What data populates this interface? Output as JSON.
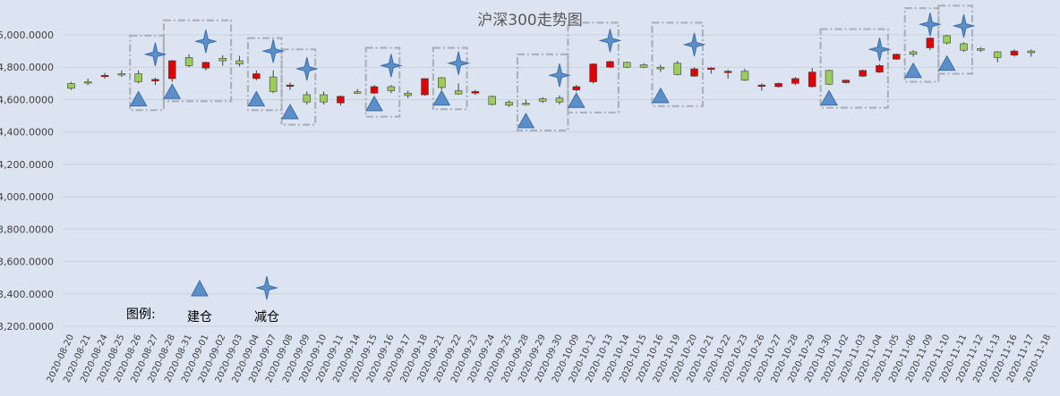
{
  "chart_data": {
    "type": "candlestick",
    "title": "沪深300走势图",
    "xlabel": "",
    "ylabel": "",
    "ylim": [
      3200,
      5000
    ],
    "y_ticks": [
      "3,200.0000",
      "3,400.0000",
      "3,600.0000",
      "3,800.0000",
      "4,000.0000",
      "4,200.0000",
      "4,400.0000",
      "4,600.0000",
      "4,800.0000",
      "5,000.0000"
    ],
    "grid": true,
    "up_color": "#9acd5a",
    "down_color": "#e00000",
    "marker_color": "#5b8fc9",
    "categories": [
      "2020-08-20",
      "2020-08-21",
      "2020-08-24",
      "2020-08-25",
      "2020-08-26",
      "2020-08-27",
      "2020-08-28",
      "2020-08-31",
      "2020-09-01",
      "2020-09-02",
      "2020-09-03",
      "2020-09-04",
      "2020-09-07",
      "2020-09-08",
      "2020-09-09",
      "2020-09-10",
      "2020-09-11",
      "2020-09-14",
      "2020-09-15",
      "2020-09-16",
      "2020-09-17",
      "2020-09-18",
      "2020-09-21",
      "2020-09-22",
      "2020-09-23",
      "2020-09-24",
      "2020-09-25",
      "2020-09-28",
      "2020-09-29",
      "2020-09-30",
      "2020-10-09",
      "2020-10-12",
      "2020-10-13",
      "2020-10-14",
      "2020-10-15",
      "2020-10-16",
      "2020-10-19",
      "2020-10-20",
      "2020-10-21",
      "2020-10-22",
      "2020-10-23",
      "2020-10-26",
      "2020-10-27",
      "2020-10-28",
      "2020-10-29",
      "2020-10-30",
      "2020-11-02",
      "2020-11-03",
      "2020-11-04",
      "2020-11-05",
      "2020-11-06",
      "2020-11-09",
      "2020-11-10",
      "2020-11-11",
      "2020-11-12",
      "2020-11-13",
      "2020-11-16",
      "2020-11-17",
      "2020-11-18"
    ],
    "candles": [
      {
        "o": 4670,
        "c": 4700,
        "h": 4710,
        "l": 4660
      },
      {
        "o": 4710,
        "c": 4710,
        "h": 4730,
        "l": 4690
      },
      {
        "o": 4750,
        "c": 4745,
        "h": 4765,
        "l": 4730
      },
      {
        "o": 4760,
        "c": 4760,
        "h": 4780,
        "l": 4740
      },
      {
        "o": 4710,
        "c": 4760,
        "h": 4780,
        "l": 4700
      },
      {
        "o": 4725,
        "c": 4715,
        "h": 4735,
        "l": 4690
      },
      {
        "o": 4840,
        "c": 4730,
        "h": 4845,
        "l": 4710
      },
      {
        "o": 4810,
        "c": 4860,
        "h": 4880,
        "l": 4800
      },
      {
        "o": 4830,
        "c": 4795,
        "h": 4835,
        "l": 4780
      },
      {
        "o": 4840,
        "c": 4855,
        "h": 4875,
        "l": 4810
      },
      {
        "o": 4820,
        "c": 4840,
        "h": 4870,
        "l": 4805
      },
      {
        "o": 4760,
        "c": 4730,
        "h": 4780,
        "l": 4720
      },
      {
        "o": 4650,
        "c": 4740,
        "h": 4780,
        "l": 4640
      },
      {
        "o": 4690,
        "c": 4685,
        "h": 4705,
        "l": 4660
      },
      {
        "o": 4585,
        "c": 4630,
        "h": 4650,
        "l": 4570
      },
      {
        "o": 4585,
        "c": 4630,
        "h": 4650,
        "l": 4570
      },
      {
        "o": 4620,
        "c": 4580,
        "h": 4625,
        "l": 4565
      },
      {
        "o": 4645,
        "c": 4648,
        "h": 4665,
        "l": 4635
      },
      {
        "o": 4680,
        "c": 4640,
        "h": 4690,
        "l": 4635
      },
      {
        "o": 4655,
        "c": 4680,
        "h": 4690,
        "l": 4640
      },
      {
        "o": 4625,
        "c": 4640,
        "h": 4655,
        "l": 4610
      },
      {
        "o": 4730,
        "c": 4630,
        "h": 4730,
        "l": 4625
      },
      {
        "o": 4675,
        "c": 4735,
        "h": 4740,
        "l": 4660
      },
      {
        "o": 4635,
        "c": 4655,
        "h": 4700,
        "l": 4630
      },
      {
        "o": 4650,
        "c": 4640,
        "h": 4660,
        "l": 4630
      },
      {
        "o": 4570,
        "c": 4620,
        "h": 4625,
        "l": 4565
      },
      {
        "o": 4565,
        "c": 4585,
        "h": 4595,
        "l": 4555
      },
      {
        "o": 4575,
        "c": 4577,
        "h": 4600,
        "l": 4565
      },
      {
        "o": 4590,
        "c": 4605,
        "h": 4615,
        "l": 4580
      },
      {
        "o": 4585,
        "c": 4610,
        "h": 4625,
        "l": 4570
      },
      {
        "o": 4680,
        "c": 4660,
        "h": 4690,
        "l": 4650
      },
      {
        "o": 4820,
        "c": 4710,
        "h": 4825,
        "l": 4700
      },
      {
        "o": 4835,
        "c": 4800,
        "h": 4840,
        "l": 4795
      },
      {
        "o": 4800,
        "c": 4830,
        "h": 4835,
        "l": 4795
      },
      {
        "o": 4800,
        "c": 4815,
        "h": 4825,
        "l": 4795
      },
      {
        "o": 4790,
        "c": 4800,
        "h": 4815,
        "l": 4770
      },
      {
        "o": 4755,
        "c": 4825,
        "h": 4840,
        "l": 4750
      },
      {
        "o": 4790,
        "c": 4745,
        "h": 4800,
        "l": 4740
      },
      {
        "o": 4795,
        "c": 4792,
        "h": 4800,
        "l": 4760
      },
      {
        "o": 4775,
        "c": 4772,
        "h": 4785,
        "l": 4730
      },
      {
        "o": 4720,
        "c": 4775,
        "h": 4790,
        "l": 4715
      },
      {
        "o": 4690,
        "c": 4688,
        "h": 4700,
        "l": 4655
      },
      {
        "o": 4700,
        "c": 4680,
        "h": 4705,
        "l": 4675
      },
      {
        "o": 4730,
        "c": 4700,
        "h": 4740,
        "l": 4690
      },
      {
        "o": 4770,
        "c": 4680,
        "h": 4795,
        "l": 4675
      },
      {
        "o": 4695,
        "c": 4780,
        "h": 4785,
        "l": 4690
      },
      {
        "o": 4720,
        "c": 4705,
        "h": 4725,
        "l": 4700
      },
      {
        "o": 4780,
        "c": 4745,
        "h": 4785,
        "l": 4740
      },
      {
        "o": 4810,
        "c": 4770,
        "h": 4820,
        "l": 4765
      },
      {
        "o": 4880,
        "c": 4850,
        "h": 4885,
        "l": 4845
      },
      {
        "o": 4880,
        "c": 4895,
        "h": 4905,
        "l": 4865
      },
      {
        "o": 4980,
        "c": 4920,
        "h": 4985,
        "l": 4905
      },
      {
        "o": 4950,
        "c": 4995,
        "h": 5000,
        "l": 4940
      },
      {
        "o": 4905,
        "c": 4945,
        "h": 4955,
        "l": 4895
      },
      {
        "o": 4905,
        "c": 4915,
        "h": 4925,
        "l": 4895
      },
      {
        "o": 4860,
        "c": 4895,
        "h": 4900,
        "l": 4830
      },
      {
        "o": 4900,
        "c": 4875,
        "h": 4910,
        "l": 4865
      },
      {
        "o": 4890,
        "c": 4900,
        "h": 4910,
        "l": 4865
      }
    ],
    "buy_signals": [
      {
        "date": "2020-08-26",
        "value": 4600
      },
      {
        "date": "2020-08-28",
        "value": 4645
      },
      {
        "date": "2020-09-04",
        "value": 4600
      },
      {
        "date": "2020-09-08",
        "value": 4520
      },
      {
        "date": "2020-09-15",
        "value": 4570
      },
      {
        "date": "2020-09-21",
        "value": 4605
      },
      {
        "date": "2020-09-28",
        "value": 4465
      },
      {
        "date": "2020-10-09",
        "value": 4590
      },
      {
        "date": "2020-10-16",
        "value": 4620
      },
      {
        "date": "2020-10-30",
        "value": 4605
      },
      {
        "date": "2020-11-06",
        "value": 4775
      },
      {
        "date": "2020-11-10",
        "value": 4820
      }
    ],
    "sell_signals": [
      {
        "date": "2020-08-27",
        "value": 4880
      },
      {
        "date": "2020-09-01",
        "value": 4960
      },
      {
        "date": "2020-09-07",
        "value": 4900
      },
      {
        "date": "2020-09-09",
        "value": 4790
      },
      {
        "date": "2020-09-16",
        "value": 4810
      },
      {
        "date": "2020-09-22",
        "value": 4825
      },
      {
        "date": "2020-09-30",
        "value": 4750
      },
      {
        "date": "2020-10-13",
        "value": 4965
      },
      {
        "date": "2020-10-20",
        "value": 4940
      },
      {
        "date": "2020-11-04",
        "value": 4910
      },
      {
        "date": "2020-11-09",
        "value": 5065
      },
      {
        "date": "2020-11-11",
        "value": 5055
      }
    ],
    "highlight_boxes": [
      {
        "from": "2020-08-26",
        "to": "2020-08-27",
        "low": 4535,
        "high": 4995
      },
      {
        "from": "2020-08-28",
        "to": "2020-09-02",
        "low": 4590,
        "high": 5090
      },
      {
        "from": "2020-09-04",
        "to": "2020-09-07",
        "low": 4535,
        "high": 4980
      },
      {
        "from": "2020-09-08",
        "to": "2020-09-09",
        "low": 4445,
        "high": 4910
      },
      {
        "from": "2020-09-15",
        "to": "2020-09-16",
        "low": 4495,
        "high": 4920
      },
      {
        "from": "2020-09-21",
        "to": "2020-09-22",
        "low": 4540,
        "high": 4920
      },
      {
        "from": "2020-09-28",
        "to": "2020-09-30",
        "low": 4410,
        "high": 4880
      },
      {
        "from": "2020-10-09",
        "to": "2020-10-13",
        "low": 4520,
        "high": 5075
      },
      {
        "from": "2020-10-16",
        "to": "2020-10-20",
        "low": 4560,
        "high": 5075
      },
      {
        "from": "2020-10-30",
        "to": "2020-11-04",
        "low": 4550,
        "high": 5035
      },
      {
        "from": "2020-11-06",
        "to": "2020-11-09",
        "low": 4710,
        "high": 5165
      },
      {
        "from": "2020-11-10",
        "to": "2020-11-11",
        "low": 4760,
        "high": 5180
      }
    ],
    "legend": {
      "title": "图例:",
      "items": [
        {
          "marker": "triangle-icon",
          "label": "建仓"
        },
        {
          "marker": "four-point-star-icon",
          "label": "减仓"
        }
      ]
    }
  }
}
